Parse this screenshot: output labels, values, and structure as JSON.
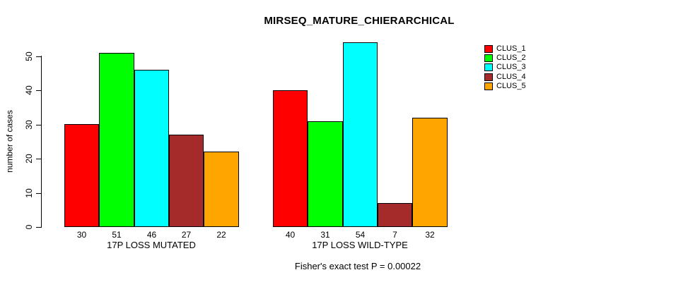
{
  "chart_data": {
    "type": "bar",
    "title": "MIRSEQ_MATURE_CHIERARCHICAL",
    "ylabel": "number of cases",
    "xlabel": "",
    "ylim": [
      0,
      50
    ],
    "yticks": [
      0,
      10,
      20,
      30,
      40,
      50
    ],
    "grid": false,
    "legend_position": "right",
    "series_labels": [
      "CLUS_1",
      "CLUS_2",
      "CLUS_3",
      "CLUS_4",
      "CLUS_5"
    ],
    "legend": [
      {
        "label": "CLUS_1",
        "color": "#FF0000"
      },
      {
        "label": "CLUS_2",
        "color": "#00FF00"
      },
      {
        "label": "CLUS_3",
        "color": "#00FFFF"
      },
      {
        "label": "CLUS_4",
        "color": "#A52A2A"
      },
      {
        "label": "CLUS_5",
        "color": "#FFA500"
      }
    ],
    "groups": [
      {
        "label": "17P LOSS MUTATED",
        "values": [
          30,
          51,
          46,
          27,
          22
        ]
      },
      {
        "label": "17P LOSS WILD-TYPE",
        "values": [
          40,
          31,
          54,
          7,
          32
        ]
      }
    ],
    "annotation": "Fisher's exact test P = 0.00022"
  }
}
